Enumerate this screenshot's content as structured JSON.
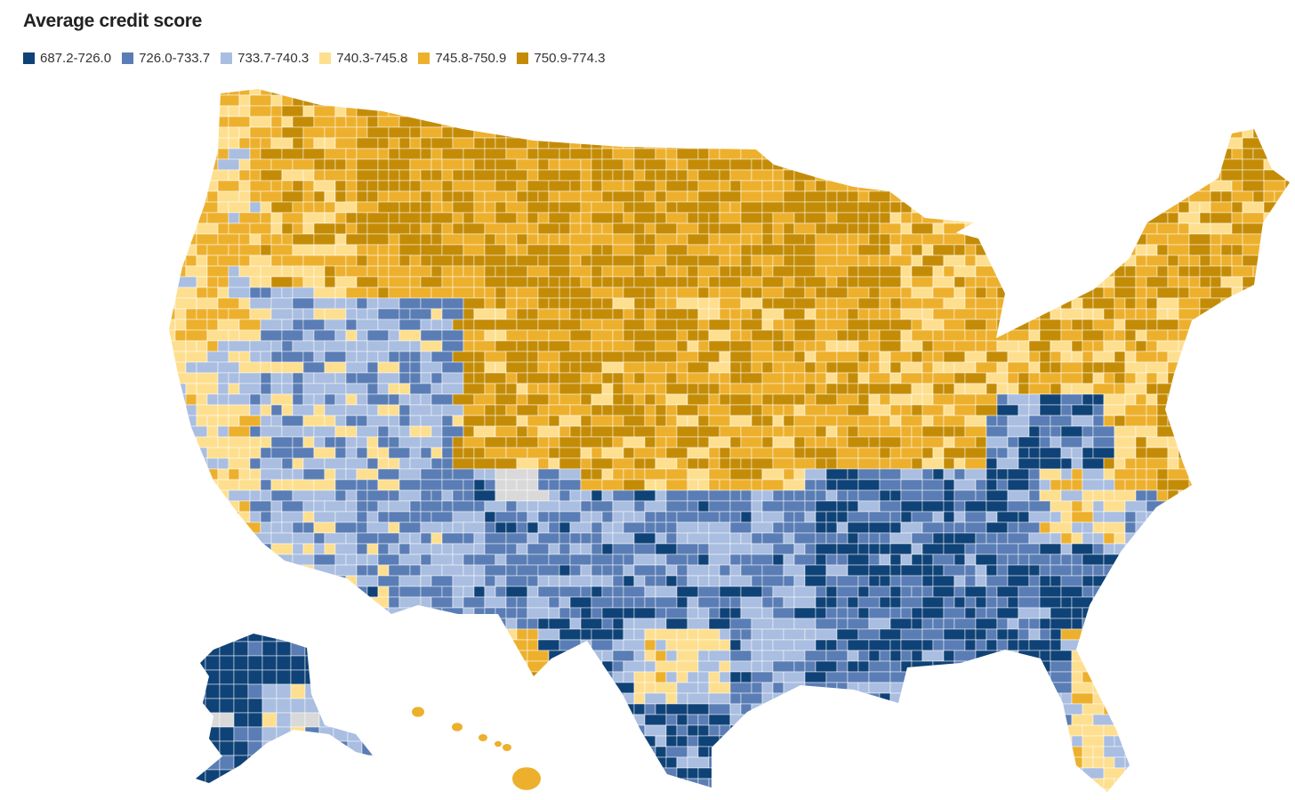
{
  "title": "Average credit score",
  "legend": [
    {
      "label": "687.2-726.0",
      "color": "#0f4277"
    },
    {
      "label": "726.0-733.7",
      "color": "#5a7db5"
    },
    {
      "label": "733.7-740.3",
      "color": "#a9bee0"
    },
    {
      "label": "740.3-745.8",
      "color": "#fedf8f"
    },
    {
      "label": "745.8-750.9",
      "color": "#edb02d"
    },
    {
      "label": "750.9-774.3",
      "color": "#c48c06"
    }
  ],
  "no_data_color": "#d9d9d9"
}
